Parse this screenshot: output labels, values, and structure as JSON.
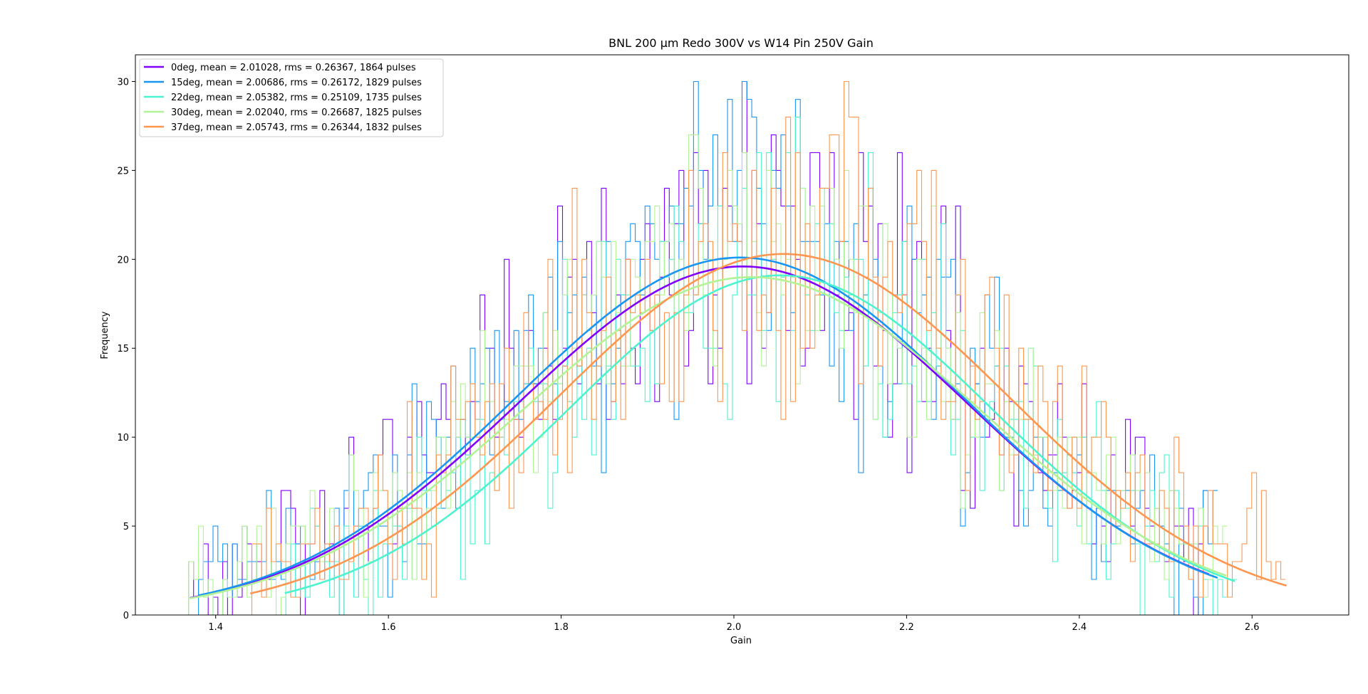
{
  "chart_data": {
    "type": "histogram",
    "title": "BNL 200 μm Redo 300V vs W14 Pin 250V Gain",
    "xlabel": "Gain",
    "ylabel": "Frequency",
    "xlim": [
      1.307,
      2.712
    ],
    "ylim": [
      0,
      31.5
    ],
    "xticks": [
      "1.4",
      "1.6",
      "1.8",
      "2.0",
      "2.2",
      "2.4",
      "2.6"
    ],
    "yticks": [
      "0",
      "5",
      "10",
      "15",
      "20",
      "25",
      "30"
    ],
    "grid": false,
    "legend_position": "upper left",
    "bins": 250,
    "series": [
      {
        "name": "0deg, mean = 2.01028, rms = 0.26367, 1864 pulses",
        "color": "#8000ff",
        "mean": 2.01028,
        "rms": 0.26367,
        "pulses": 1864,
        "fit_sigma": 0.2605,
        "fit_peak": 19.6,
        "range": [
          1.37,
          2.55
        ]
      },
      {
        "name": "15deg, mean = 2.00686, rms = 0.26172, 1829 pulses",
        "color": "#1996f3",
        "mean": 2.00686,
        "rms": 0.26172,
        "pulses": 1829,
        "fit_sigma": 0.26,
        "fit_peak": 20.1,
        "range": [
          1.38,
          2.56
        ]
      },
      {
        "name": "22deg, mean = 2.05382, rms = 0.25109, 1735 pulses",
        "color": "#4df3ce",
        "mean": 2.05382,
        "rms": 0.25109,
        "pulses": 1735,
        "fit_sigma": 0.245,
        "fit_peak": 19.1,
        "range": [
          1.48,
          2.58
        ]
      },
      {
        "name": "30deg, mean = 2.02040, rms = 0.26687, 1825 pulses",
        "color": "#b2f396",
        "mean": 2.0204,
        "rms": 0.26687,
        "pulses": 1825,
        "fit_sigma": 0.265,
        "fit_peak": 19.0,
        "range": [
          1.37,
          2.57
        ]
      },
      {
        "name": "37deg, mean = 2.05743, rms = 0.26344, 1832 pulses",
        "color": "#ff964f",
        "mean": 2.05743,
        "rms": 0.26344,
        "pulses": 1832,
        "fit_sigma": 0.26,
        "fit_peak": 20.3,
        "range": [
          1.44,
          2.64
        ]
      }
    ]
  }
}
